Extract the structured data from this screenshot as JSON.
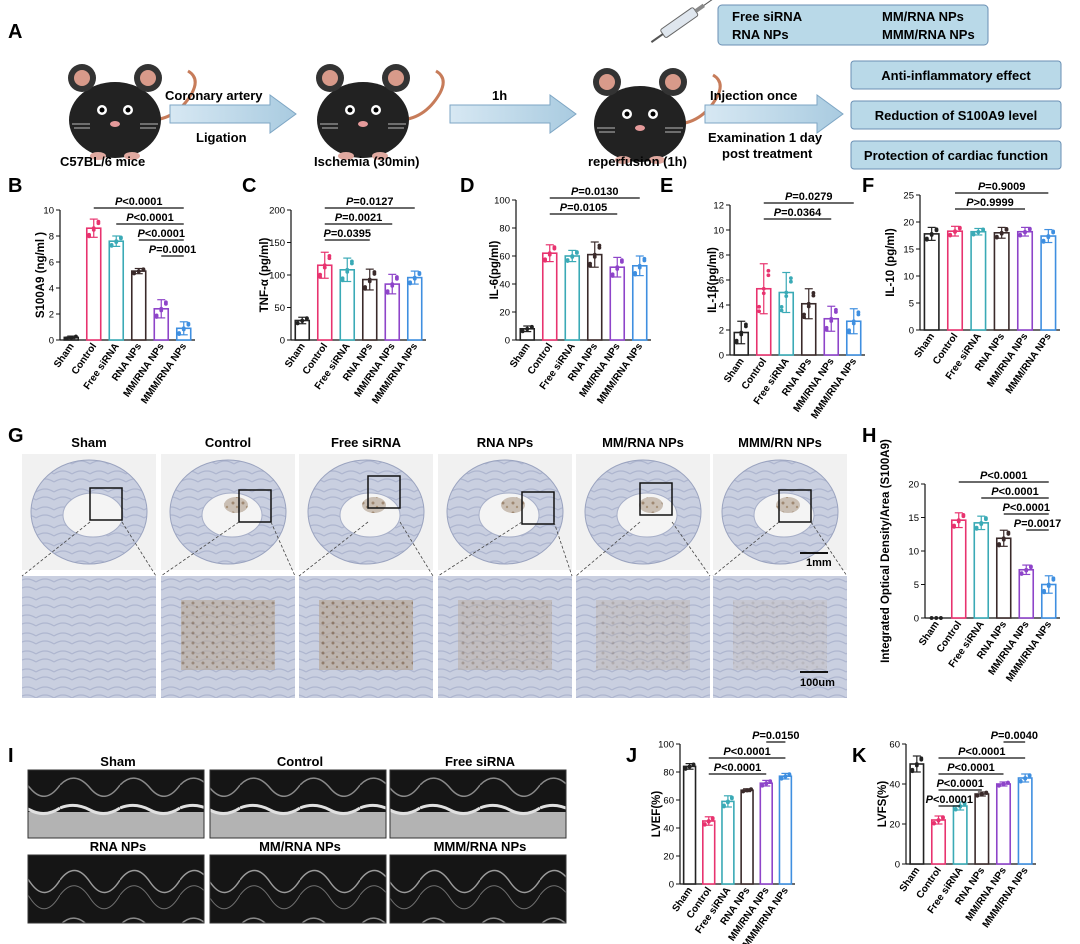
{
  "panel_letters": [
    "A",
    "B",
    "C",
    "D",
    "E",
    "F",
    "G",
    "H",
    "I",
    "J",
    "K"
  ],
  "colors": {
    "Sham": "#222222",
    "Control": "#e8336f",
    "Free siRNA": "#3aaab6",
    "RNA NPs": "#3a2a2a",
    "MM/RNA NPs": "#8e44c9",
    "MMM/RNA NPs": "#3f8fe0",
    "box_fill": "#b9d9e8",
    "box_stroke": "#6a8fb3"
  },
  "panel_a": {
    "mouse_label_1": "C57BL/6  mice",
    "arrow1_top": "Coronary artery",
    "arrow1_bottom": "Ligation",
    "mouse_label_2": "Ischemia (30min)",
    "arrow2_top": "1h",
    "mouse_label_3": "reperfusion (1h)",
    "arrow3_top": "Injection once",
    "arrow3_bottom_1": "Examination 1 day",
    "arrow3_bottom_2": "post treatment",
    "groups_box": [
      "Free siRNA",
      "MM/RNA NPs",
      "RNA NPs",
      "MMM/RNA NPs"
    ],
    "outcomes": [
      "Anti-inflammatory effect",
      "Reduction of S100A9 level",
      "Protection of cardiac function"
    ]
  },
  "histology": {
    "labels": [
      "Sham",
      "Control",
      "Free siRNA",
      "RNA NPs",
      "MM/RNA NPs",
      "MMM/RN NPs"
    ],
    "scale_top": "1mm",
    "scale_bottom": "100um"
  },
  "echo": {
    "labels": [
      "Sham",
      "Control",
      "Free siRNA",
      "RNA NPs",
      "MM/RNA NPs",
      "MMM/RNA NPs"
    ]
  },
  "chart_data": [
    {
      "id": "B",
      "type": "bar",
      "ylabel": "S100A9 (ng/ml )",
      "ylim": [
        0,
        10
      ],
      "yticks": [
        0,
        2,
        4,
        6,
        8,
        10
      ],
      "categories": [
        "Sham",
        "Control",
        "Free siRNA",
        "RNA NPs",
        "MM/RNA NPs",
        "MMM/RNA NPs"
      ],
      "values": [
        0.2,
        8.6,
        7.6,
        5.3,
        2.4,
        0.9
      ],
      "errors": [
        0.1,
        0.7,
        0.4,
        0.2,
        0.7,
        0.5
      ],
      "annotations": [
        {
          "prefix": "P",
          "text": "<0.0001",
          "from": 1,
          "to": 5
        },
        {
          "prefix": "P",
          "text": "<0.0001",
          "from": 2,
          "to": 5
        },
        {
          "prefix": "P",
          "text": "<0.0001",
          "from": 3,
          "to": 5
        },
        {
          "prefix": "P",
          "text": "=0.0001",
          "from": 4,
          "to": 5
        }
      ]
    },
    {
      "id": "C",
      "type": "bar",
      "ylabel": "TNF-α (pg/ml)",
      "ylim": [
        0,
        200
      ],
      "yticks": [
        0,
        50,
        100,
        150,
        200
      ],
      "categories": [
        "Sham",
        "Control",
        "Free siRNA",
        "RNA NPs",
        "MM/RNA NPs",
        "MMM/RNA NPs"
      ],
      "values": [
        30,
        115,
        108,
        93,
        86,
        96
      ],
      "errors": [
        5,
        20,
        18,
        16,
        15,
        10
      ],
      "annotations": [
        {
          "prefix": "P",
          "text": "=0.0127",
          "from": 1,
          "to": 5
        },
        {
          "prefix": "P",
          "text": "=0.0021",
          "from": 1,
          "to": 4
        },
        {
          "prefix": "P",
          "text": "=0.0395",
          "from": 1,
          "to": 3
        }
      ]
    },
    {
      "id": "D",
      "type": "bar",
      "ylabel": "IL-6(pg/ml)",
      "ylim": [
        0,
        100
      ],
      "yticks": [
        0,
        20,
        40,
        60,
        80,
        100
      ],
      "categories": [
        "Sham",
        "Control",
        "Free siRNA",
        "RNA NPs",
        "MM/RNA NPs",
        "MMM/RNA NPs"
      ],
      "values": [
        8,
        62,
        60,
        61,
        52,
        53
      ],
      "errors": [
        2,
        6,
        4,
        9,
        7,
        7
      ],
      "annotations": [
        {
          "prefix": "P",
          "text": "=0.0130",
          "from": 1,
          "to": 5
        },
        {
          "prefix": "P",
          "text": "=0.0105",
          "from": 1,
          "to": 4
        }
      ]
    },
    {
      "id": "E",
      "type": "bar",
      "ylabel": "IL-1β(pg/ml)",
      "ylim": [
        0,
        12
      ],
      "yticks": [
        0,
        2,
        4,
        6,
        8,
        10,
        12
      ],
      "categories": [
        "Sham",
        "Control",
        "Free siRNA",
        "RNA NPs",
        "MM/RNA NPs",
        "MMM/RNA NPs"
      ],
      "values": [
        1.8,
        5.3,
        5.0,
        4.1,
        2.9,
        2.7
      ],
      "errors": [
        0.9,
        2.0,
        1.6,
        1.2,
        1.0,
        1.0
      ],
      "annotations": [
        {
          "prefix": "P",
          "text": "=0.0279",
          "from": 1,
          "to": 5
        },
        {
          "prefix": "P",
          "text": "=0.0364",
          "from": 1,
          "to": 4
        }
      ]
    },
    {
      "id": "F",
      "type": "bar",
      "ylabel": "IL-10 (pg/ml)",
      "ylim": [
        0,
        25
      ],
      "yticks": [
        0,
        5,
        10,
        15,
        20,
        25
      ],
      "categories": [
        "Sham",
        "Control",
        "Free siRNA",
        "RNA NPs",
        "MM/RNA NPs",
        "MMM/RNA NPs"
      ],
      "values": [
        17.8,
        18.3,
        18.2,
        18.0,
        18.2,
        17.4
      ],
      "errors": [
        1.2,
        0.9,
        0.6,
        1.0,
        0.8,
        1.2
      ],
      "annotations": [
        {
          "prefix": "P",
          "text": "=0.9009",
          "from": 1,
          "to": 5
        },
        {
          "prefix": "P",
          "text": ">0.9999",
          "from": 1,
          "to": 4
        }
      ]
    },
    {
      "id": "H",
      "type": "bar",
      "ylabel": "Integrated Optical Density/Area (S100A9)",
      "ylim": [
        0,
        20
      ],
      "yticks": [
        0,
        5,
        10,
        15,
        20
      ],
      "categories": [
        "Sham",
        "Control",
        "Free siRNA",
        "RNA NPs",
        "MM/RNA NPs",
        "MMM/RNA NPs"
      ],
      "values": [
        0,
        14.6,
        14.2,
        11.9,
        7.2,
        5.0
      ],
      "errors": [
        0,
        1.1,
        1.0,
        1.2,
        0.7,
        1.3
      ],
      "annotations": [
        {
          "prefix": "P",
          "text": "<0.0001",
          "from": 1,
          "to": 5
        },
        {
          "prefix": "P",
          "text": "<0.0001",
          "from": 2,
          "to": 5
        },
        {
          "prefix": "P",
          "text": "<0.0001",
          "from": 3,
          "to": 5
        },
        {
          "prefix": "P",
          "text": "=0.0017",
          "from": 4,
          "to": 5
        }
      ]
    },
    {
      "id": "J",
      "type": "bar",
      "ylabel": "LVEF(%)",
      "ylim": [
        0,
        100
      ],
      "yticks": [
        0,
        20,
        40,
        60,
        80,
        100
      ],
      "categories": [
        "Sham",
        "Control",
        "Free siRNA",
        "RNA NPs",
        "MM/RNA NPs",
        "MMM/RNA NPs"
      ],
      "values": [
        84,
        45,
        59,
        67,
        72,
        77
      ],
      "errors": [
        2,
        3,
        4,
        1,
        2,
        2
      ],
      "annotations": [
        {
          "prefix": "P",
          "text": "=0.0150",
          "from": 4,
          "to": 5
        },
        {
          "prefix": "P",
          "text": "<0.0001",
          "from": 1,
          "to": 5
        },
        {
          "prefix": "P",
          "text": "<0.0001",
          "from": 1,
          "to": 4
        }
      ]
    },
    {
      "id": "K",
      "type": "bar",
      "ylabel": "LVFS(%)",
      "ylim": [
        0,
        60
      ],
      "yticks": [
        0,
        20,
        40,
        60
      ],
      "categories": [
        "Sham",
        "Control",
        "Free siRNA",
        "RNA NPs",
        "MM/RNA NPs",
        "MMM/RNA NPs"
      ],
      "values": [
        50,
        22,
        29,
        35,
        40,
        43
      ],
      "errors": [
        4,
        2,
        2,
        1,
        1,
        2
      ],
      "annotations": [
        {
          "prefix": "P",
          "text": "=0.0040",
          "from": 4,
          "to": 5
        },
        {
          "prefix": "P",
          "text": "<0.0001",
          "from": 1,
          "to": 5
        },
        {
          "prefix": "P",
          "text": "<0.0001",
          "from": 1,
          "to": 4
        },
        {
          "prefix": "P",
          "text": "<0.0001",
          "from": 1,
          "to": 3
        },
        {
          "prefix": "P",
          "text": "<0.0001",
          "from": 1,
          "to": 2
        }
      ]
    }
  ]
}
